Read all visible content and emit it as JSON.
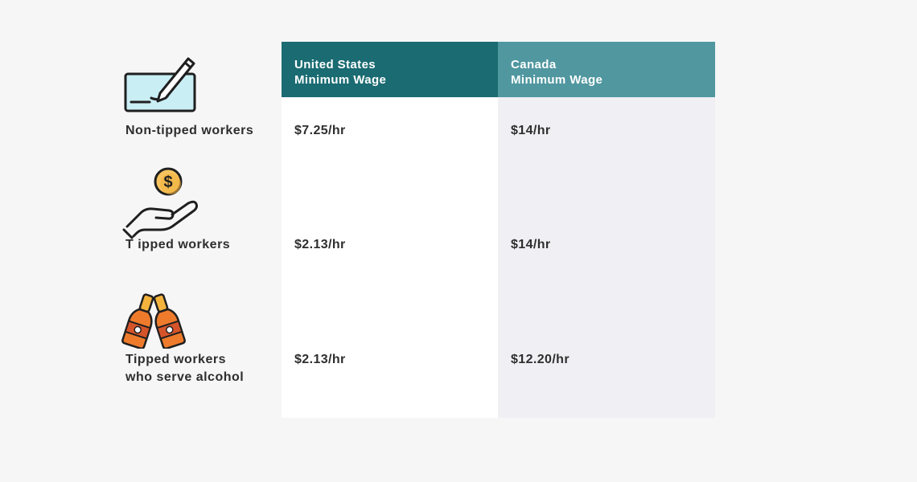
{
  "header": {
    "us": {
      "line1": "United States",
      "line2": "Minimum Wage"
    },
    "ca": {
      "line1": "Canada",
      "line2": "Minimum Wage"
    }
  },
  "rows": [
    {
      "icon": "check-writing-icon",
      "label_lines": [
        "Non-tipped workers"
      ],
      "us": "$7.25/hr",
      "ca": "$14/hr"
    },
    {
      "icon": "hand-coin-icon",
      "label_lines": [
        "T ipped workers"
      ],
      "us": "$2.13/hr",
      "ca": "$14/hr"
    },
    {
      "icon": "beer-bottles-icon",
      "label_lines": [
        "Tipped workers",
        "who serve alcohol"
      ],
      "us": "$2.13/hr",
      "ca": "$12.20/hr"
    }
  ],
  "colors": {
    "page_bg": "#f6f6f6",
    "us_header": "#1a6b72",
    "ca_header": "#5097a0",
    "us_column": "#ffffff",
    "ca_column": "#efeff4",
    "icon_cyan": "#c9eef4",
    "icon_gold": "#f3b33d",
    "icon_orange": "#ee7b2c",
    "icon_red": "#d6542a"
  }
}
